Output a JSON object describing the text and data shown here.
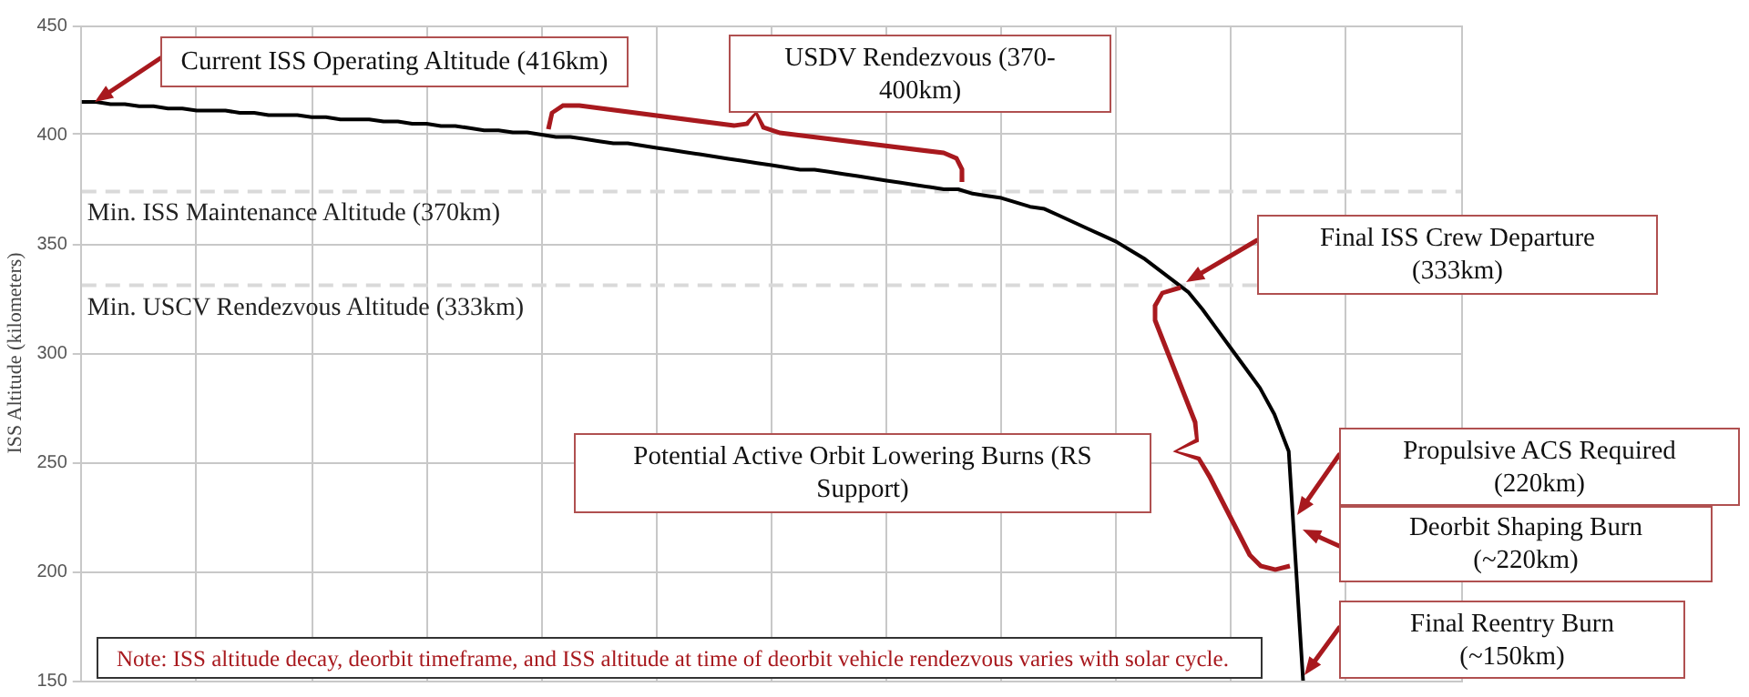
{
  "chart_data": {
    "type": "line",
    "ylabel": "ISS Altitude (kilometers)",
    "categories": [
      null,
      null,
      null,
      null,
      null,
      null,
      null,
      null,
      null,
      null,
      null,
      null,
      null,
      null,
      null,
      null,
      null,
      null,
      null,
      null,
      null,
      null,
      null,
      null,
      null,
      null,
      null,
      null,
      null,
      null,
      null,
      null,
      null,
      null,
      null,
      null,
      null,
      null,
      null,
      null,
      null,
      null,
      null,
      null,
      null,
      null,
      null,
      null,
      null,
      null,
      null,
      null,
      null,
      null,
      null,
      null,
      null,
      null,
      null,
      null,
      null,
      null,
      null,
      null,
      null,
      null,
      null,
      null,
      null,
      null,
      null,
      null,
      null,
      null,
      null,
      null,
      null,
      null,
      null,
      null,
      null,
      null,
      null,
      null,
      null,
      null,
      null,
      null,
      null,
      null,
      null,
      null,
      null,
      null,
      null,
      null,
      null
    ],
    "series": [
      {
        "color": "#000000",
        "values": [
          415,
          415,
          414,
          414,
          413,
          413,
          412,
          412,
          411,
          411,
          411,
          410,
          410,
          409,
          409,
          409,
          408,
          408,
          407,
          407,
          407,
          406,
          406,
          405,
          405,
          404,
          404,
          403,
          402,
          402,
          401,
          401,
          400,
          399,
          399,
          398,
          397,
          396,
          396,
          395,
          394,
          393,
          392,
          391,
          390,
          389,
          388,
          387,
          386,
          385,
          384,
          384,
          383,
          382,
          381,
          380,
          379,
          378,
          377,
          376,
          375,
          375,
          373,
          372,
          371,
          369,
          367,
          366,
          363,
          360,
          357,
          354,
          351,
          347,
          343,
          338,
          333,
          328,
          320,
          311,
          302,
          293,
          284,
          272,
          255,
          150,
          null,
          null,
          null,
          null,
          null,
          null,
          null,
          null,
          null,
          null,
          null
        ]
      }
    ],
    "ylim": [
      150,
      450
    ],
    "yticks": [
      150,
      200,
      250,
      300,
      350,
      400,
      450
    ],
    "tick_labels": "y",
    "grid": true,
    "marker": "none",
    "line_style": "solid",
    "ref_lines": [
      {
        "axis": "y",
        "value": 374,
        "label": "Min. ISS Maintenance Altitude (370km)",
        "color": "#d9d9d9",
        "line_style": "dashed"
      },
      {
        "axis": "y",
        "value": 331,
        "label": "Min. USCV Rendezvous Altitude (333km)",
        "color": "#d9d9d9",
        "line_style": "dashed"
      }
    ],
    "annotations": [
      "Current ISS Operating Altitude (416km)",
      "USDV Rendezvous (370-400km)",
      "Final ISS Crew Departure (333km)",
      "Potential Active Orbit Lowering Burns (RS Support)",
      "Propulsive ACS Required (220km)",
      "Deorbit Shaping Burn (~220km)",
      "Final Reentry Burn (~150km)",
      "Note: ISS altitude decay, deorbit timeframe, and ISS altitude at time of deorbit vehicle rendezvous varies with solar cycle."
    ]
  }
}
